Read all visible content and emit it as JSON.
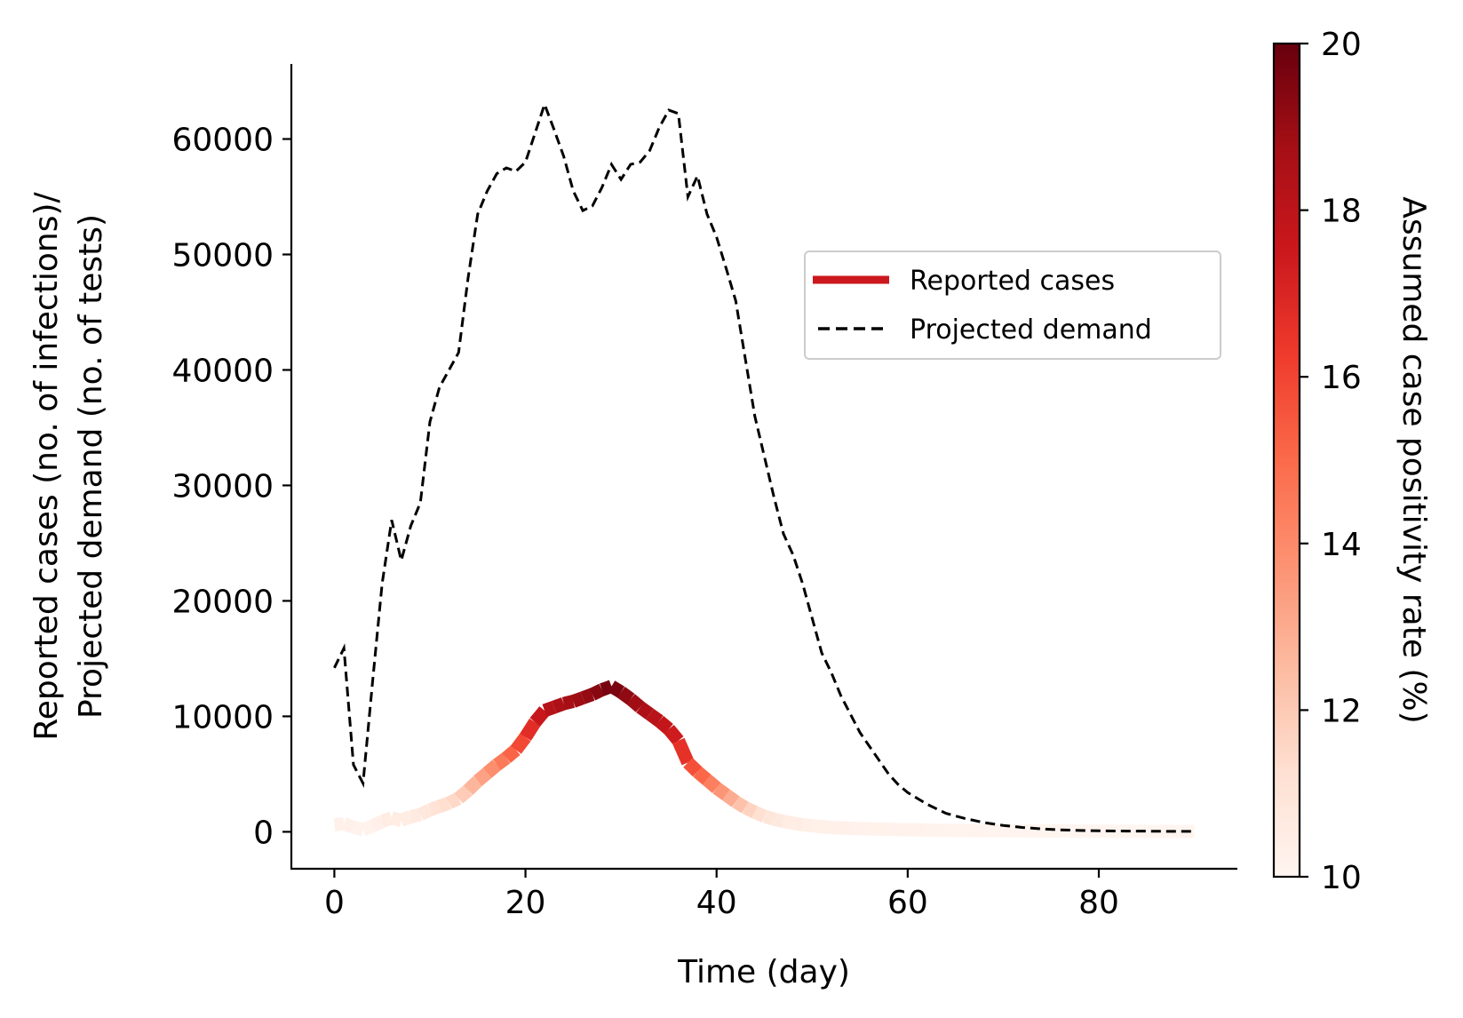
{
  "chart_data": {
    "type": "line",
    "xlabel": "Time (day)",
    "ylabel_line1": "Reported cases (no. of infections)/",
    "ylabel_line2": "Projected demand (no. of tests)",
    "xlim": [
      -4.5,
      94.5
    ],
    "ylim": [
      -3200,
      66500
    ],
    "xticks": [
      0,
      20,
      40,
      60,
      80
    ],
    "yticks": [
      0,
      10000,
      20000,
      30000,
      40000,
      50000,
      60000
    ],
    "legend": {
      "position": "center-right",
      "entries": [
        "Reported cases",
        "Projected demand"
      ]
    },
    "colorbar": {
      "label": "Assumed case positivity rate (%)",
      "range": [
        10,
        20
      ],
      "ticks": [
        10,
        12,
        14,
        16,
        18,
        20
      ],
      "colormap": "Reds",
      "stops": [
        "#fff5f0",
        "#fee0d2",
        "#fcbba1",
        "#fc9272",
        "#fb6a4a",
        "#ef3b2c",
        "#cb181d",
        "#a50f15",
        "#67000d"
      ]
    },
    "series": [
      {
        "name": "Projected demand",
        "style": "dashed",
        "color": "#000000",
        "x": [
          0,
          1,
          2,
          3,
          4,
          5,
          6,
          7,
          8,
          9,
          10,
          11,
          12,
          13,
          14,
          15,
          16,
          17,
          18,
          19,
          20,
          21,
          22,
          23,
          24,
          25,
          26,
          27,
          28,
          29,
          30,
          31,
          32,
          33,
          34,
          35,
          36,
          37,
          38,
          39,
          40,
          41,
          42,
          43,
          44,
          45,
          46,
          47,
          48,
          49,
          50,
          51,
          52,
          53,
          54,
          55,
          56,
          57,
          58,
          59,
          60,
          62,
          64,
          66,
          68,
          70,
          72,
          74,
          76,
          78,
          80,
          82,
          84,
          86,
          88,
          90
        ],
        "y": [
          14200,
          15900,
          5800,
          4200,
          13000,
          21500,
          27000,
          23500,
          26500,
          28500,
          35500,
          38500,
          40000,
          41500,
          48000,
          53500,
          55500,
          57000,
          57500,
          57200,
          58000,
          60500,
          63000,
          60800,
          58500,
          55500,
          53800,
          54200,
          55800,
          57800,
          56500,
          57800,
          58000,
          59000,
          61000,
          62500,
          62200,
          55000,
          56800,
          53500,
          51500,
          48800,
          46000,
          41000,
          36000,
          32500,
          29000,
          25800,
          24000,
          21500,
          18500,
          15500,
          13800,
          11800,
          10200,
          8600,
          7400,
          6200,
          5000,
          4100,
          3400,
          2400,
          1600,
          1150,
          800,
          550,
          380,
          250,
          170,
          120,
          90,
          70,
          60,
          50,
          40,
          40
        ]
      },
      {
        "name": "Reported cases",
        "style": "colormapped",
        "x": [
          0,
          1,
          2,
          3,
          4,
          5,
          6,
          7,
          8,
          9,
          10,
          11,
          12,
          13,
          14,
          15,
          16,
          17,
          18,
          19,
          20,
          21,
          22,
          23,
          24,
          25,
          26,
          27,
          28,
          29,
          30,
          31,
          32,
          33,
          34,
          35,
          36,
          37,
          38,
          39,
          40,
          41,
          42,
          43,
          44,
          45,
          46,
          47,
          48,
          49,
          50,
          52,
          54,
          56,
          58,
          60,
          62,
          64,
          66,
          68,
          70,
          72,
          74,
          76,
          78,
          80,
          82,
          84,
          86,
          88,
          90
        ],
        "y": [
          600,
          700,
          400,
          200,
          500,
          900,
          1200,
          1000,
          1300,
          1500,
          1900,
          2200,
          2500,
          2900,
          3600,
          4400,
          5100,
          5800,
          6400,
          7100,
          8200,
          9500,
          10500,
          10800,
          11100,
          11300,
          11600,
          11900,
          12300,
          12600,
          12100,
          11500,
          10800,
          10200,
          9600,
          8900,
          7900,
          6000,
          5200,
          4500,
          3800,
          3200,
          2600,
          2100,
          1700,
          1350,
          1100,
          900,
          750,
          620,
          520,
          380,
          300,
          250,
          210,
          180,
          150,
          130,
          110,
          100,
          90,
          80,
          70,
          60,
          55,
          50,
          45,
          40,
          35,
          30,
          30
        ],
        "positivity": [
          10.2,
          10.3,
          10.2,
          10.1,
          10.2,
          10.5,
          10.6,
          10.5,
          10.6,
          10.7,
          11.0,
          11.2,
          11.4,
          11.6,
          12.3,
          13.0,
          13.6,
          14.2,
          14.8,
          15.5,
          16.3,
          17.2,
          18.0,
          18.4,
          18.6,
          18.8,
          19.0,
          19.2,
          19.5,
          19.8,
          19.4,
          19.0,
          18.7,
          18.3,
          17.9,
          17.6,
          17.2,
          16.0,
          15.4,
          14.7,
          14.0,
          13.3,
          12.6,
          11.9,
          11.4,
          11.0,
          10.8,
          10.6,
          10.5,
          10.4,
          10.35,
          10.3,
          10.25,
          10.2,
          10.2,
          10.15,
          10.15,
          10.1,
          10.1,
          10.1,
          10.05,
          10.05,
          10.05,
          10.0,
          10.0,
          10.0,
          10.0,
          10.0,
          10.0,
          10.0,
          10.0
        ]
      }
    ]
  }
}
